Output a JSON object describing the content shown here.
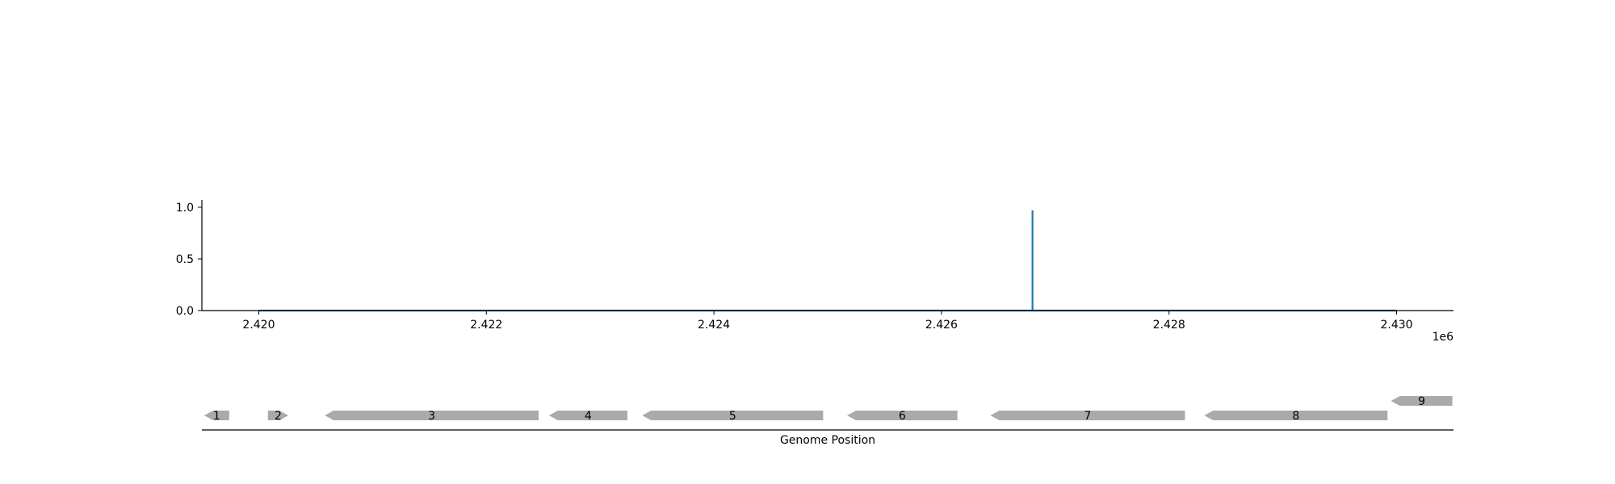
{
  "chart_data": [
    {
      "type": "line",
      "title": "",
      "xlabel": "",
      "ylabel": "",
      "x_offset_text": "1e6",
      "xlim": [
        2419500,
        2430500
      ],
      "ylim": [
        0,
        1.07
      ],
      "x_ticks": [
        {
          "value": 2420000,
          "label": "2.420"
        },
        {
          "value": 2422000,
          "label": "2.422"
        },
        {
          "value": 2424000,
          "label": "2.424"
        },
        {
          "value": 2426000,
          "label": "2.426"
        },
        {
          "value": 2428000,
          "label": "2.428"
        },
        {
          "value": 2430000,
          "label": "2.430"
        }
      ],
      "y_ticks": [
        {
          "value": 0.0,
          "label": "0.0"
        },
        {
          "value": 0.5,
          "label": "0.5"
        },
        {
          "value": 1.0,
          "label": "1.0"
        }
      ],
      "grid": false,
      "series": [
        {
          "color": "#1f77b4",
          "x": [
            2420000,
            2426800,
            2426800,
            2426800,
            2430000
          ],
          "y": [
            0,
            0,
            0.97,
            0,
            0
          ]
        }
      ]
    },
    {
      "type": "gene-map",
      "xlabel": "Genome Position",
      "xlim": [
        2419500,
        2430500
      ],
      "color": "#aaaaaa",
      "genes": [
        {
          "label": "1",
          "start": 2419520,
          "end": 2419740,
          "strand": -1,
          "row": 0
        },
        {
          "label": "2",
          "start": 2420080,
          "end": 2420260,
          "strand": 1,
          "row": 0
        },
        {
          "label": "3",
          "start": 2420580,
          "end": 2422460,
          "strand": -1,
          "row": 0
        },
        {
          "label": "4",
          "start": 2422550,
          "end": 2423240,
          "strand": -1,
          "row": 0
        },
        {
          "label": "5",
          "start": 2423370,
          "end": 2424960,
          "strand": -1,
          "row": 0
        },
        {
          "label": "6",
          "start": 2425170,
          "end": 2426140,
          "strand": -1,
          "row": 0
        },
        {
          "label": "7",
          "start": 2426430,
          "end": 2428140,
          "strand": -1,
          "row": 0
        },
        {
          "label": "8",
          "start": 2428310,
          "end": 2429920,
          "strand": -1,
          "row": 0
        },
        {
          "label": "9",
          "start": 2429950,
          "end": 2430490,
          "strand": -1,
          "row": 1
        }
      ]
    }
  ]
}
